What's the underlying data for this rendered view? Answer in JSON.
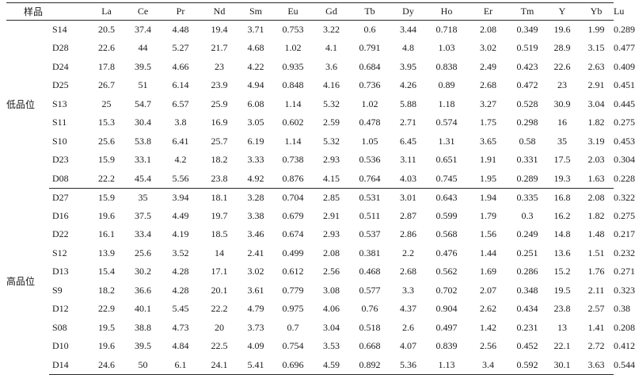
{
  "table": {
    "sample_header": "样品",
    "elements": [
      "La",
      "Ce",
      "Pr",
      "Nd",
      "Sm",
      "Eu",
      "Gd",
      "Tb",
      "Dy",
      "Ho",
      "Er",
      "Tm",
      "Y",
      "Yb",
      "Lu"
    ],
    "groups": [
      {
        "name": "低品位",
        "rows": [
          {
            "sample": "S14",
            "values": [
              "20.5",
              "37.4",
              "4.48",
              "19.4",
              "3.71",
              "0.753",
              "3.22",
              "0.6",
              "3.44",
              "0.718",
              "2.08",
              "0.349",
              "19.6",
              "1.99",
              "0.289"
            ]
          },
          {
            "sample": "D28",
            "values": [
              "22.6",
              "44",
              "5.27",
              "21.7",
              "4.68",
              "1.02",
              "4.1",
              "0.791",
              "4.8",
              "1.03",
              "3.02",
              "0.519",
              "28.9",
              "3.15",
              "0.477"
            ]
          },
          {
            "sample": "D24",
            "values": [
              "17.8",
              "39.5",
              "4.66",
              "23",
              "4.22",
              "0.935",
              "3.6",
              "0.684",
              "3.95",
              "0.838",
              "2.49",
              "0.423",
              "22.6",
              "2.63",
              "0.409"
            ]
          },
          {
            "sample": "D25",
            "values": [
              "26.7",
              "51",
              "6.14",
              "23.9",
              "4.94",
              "0.848",
              "4.16",
              "0.736",
              "4.26",
              "0.89",
              "2.68",
              "0.472",
              "23",
              "2.91",
              "0.451"
            ]
          },
          {
            "sample": "S13",
            "values": [
              "25",
              "54.7",
              "6.57",
              "25.9",
              "6.08",
              "1.14",
              "5.32",
              "1.02",
              "5.88",
              "1.18",
              "3.27",
              "0.528",
              "30.9",
              "3.04",
              "0.445"
            ]
          },
          {
            "sample": "S11",
            "values": [
              "15.3",
              "30.4",
              "3.8",
              "16.9",
              "3.05",
              "0.602",
              "2.59",
              "0.478",
              "2.71",
              "0.574",
              "1.75",
              "0.298",
              "16",
              "1.82",
              "0.275"
            ]
          },
          {
            "sample": "S10",
            "values": [
              "25.6",
              "53.8",
              "6.41",
              "25.7",
              "6.19",
              "1.14",
              "5.32",
              "1.05",
              "6.45",
              "1.31",
              "3.65",
              "0.58",
              "35",
              "3.19",
              "0.453"
            ]
          },
          {
            "sample": "D23",
            "values": [
              "15.9",
              "33.1",
              "4.2",
              "18.2",
              "3.33",
              "0.738",
              "2.93",
              "0.536",
              "3.11",
              "0.651",
              "1.91",
              "0.331",
              "17.5",
              "2.03",
              "0.304"
            ]
          },
          {
            "sample": "D08",
            "values": [
              "22.2",
              "45.4",
              "5.56",
              "23.8",
              "4.92",
              "0.876",
              "4.15",
              "0.764",
              "4.03",
              "0.745",
              "1.95",
              "0.289",
              "19.3",
              "1.63",
              "0.228"
            ]
          }
        ]
      },
      {
        "name": "高品位",
        "rows": [
          {
            "sample": "D27",
            "values": [
              "15.9",
              "35",
              "3.94",
              "18.1",
              "3.28",
              "0.704",
              "2.85",
              "0.531",
              "3.01",
              "0.643",
              "1.94",
              "0.335",
              "16.8",
              "2.08",
              "0.322"
            ]
          },
          {
            "sample": "D16",
            "values": [
              "19.6",
              "37.5",
              "4.49",
              "19.7",
              "3.38",
              "0.679",
              "2.91",
              "0.511",
              "2.87",
              "0.599",
              "1.79",
              "0.3",
              "16.2",
              "1.82",
              "0.275"
            ]
          },
          {
            "sample": "D22",
            "values": [
              "16.1",
              "33.4",
              "4.19",
              "18.5",
              "3.46",
              "0.674",
              "2.93",
              "0.537",
              "2.86",
              "0.568",
              "1.56",
              "0.249",
              "14.8",
              "1.48",
              "0.217"
            ]
          },
          {
            "sample": "S12",
            "values": [
              "13.9",
              "25.6",
              "3.52",
              "14",
              "2.41",
              "0.499",
              "2.08",
              "0.381",
              "2.2",
              "0.476",
              "1.44",
              "0.251",
              "13.6",
              "1.51",
              "0.232"
            ]
          },
          {
            "sample": "D13",
            "values": [
              "15.4",
              "30.2",
              "4.28",
              "17.1",
              "3.02",
              "0.612",
              "2.56",
              "0.468",
              "2.68",
              "0.562",
              "1.69",
              "0.286",
              "15.2",
              "1.76",
              "0.271"
            ]
          },
          {
            "sample": "S9",
            "values": [
              "18.2",
              "36.6",
              "4.28",
              "20.1",
              "3.61",
              "0.779",
              "3.08",
              "0.577",
              "3.3",
              "0.702",
              "2.07",
              "0.348",
              "19.5",
              "2.11",
              "0.323"
            ]
          },
          {
            "sample": "D12",
            "values": [
              "22.9",
              "40.1",
              "5.45",
              "22.2",
              "4.79",
              "0.975",
              "4.06",
              "0.76",
              "4.37",
              "0.904",
              "2.62",
              "0.434",
              "23.8",
              "2.57",
              "0.38"
            ]
          },
          {
            "sample": "S08",
            "values": [
              "19.5",
              "38.8",
              "4.73",
              "20",
              "3.73",
              "0.7",
              "3.04",
              "0.518",
              "2.6",
              "0.497",
              "1.42",
              "0.231",
              "13",
              "1.41",
              "0.208"
            ]
          },
          {
            "sample": "D10",
            "values": [
              "19.6",
              "39.5",
              "4.84",
              "22.5",
              "4.09",
              "0.754",
              "3.53",
              "0.668",
              "4.07",
              "0.839",
              "2.56",
              "0.452",
              "22.1",
              "2.72",
              "0.412"
            ]
          },
          {
            "sample": "D14",
            "values": [
              "24.6",
              "50",
              "6.1",
              "24.1",
              "5.41",
              "0.696",
              "4.59",
              "0.892",
              "5.36",
              "1.13",
              "3.4",
              "0.592",
              "30.1",
              "3.63",
              "0.544"
            ]
          }
        ]
      }
    ]
  }
}
